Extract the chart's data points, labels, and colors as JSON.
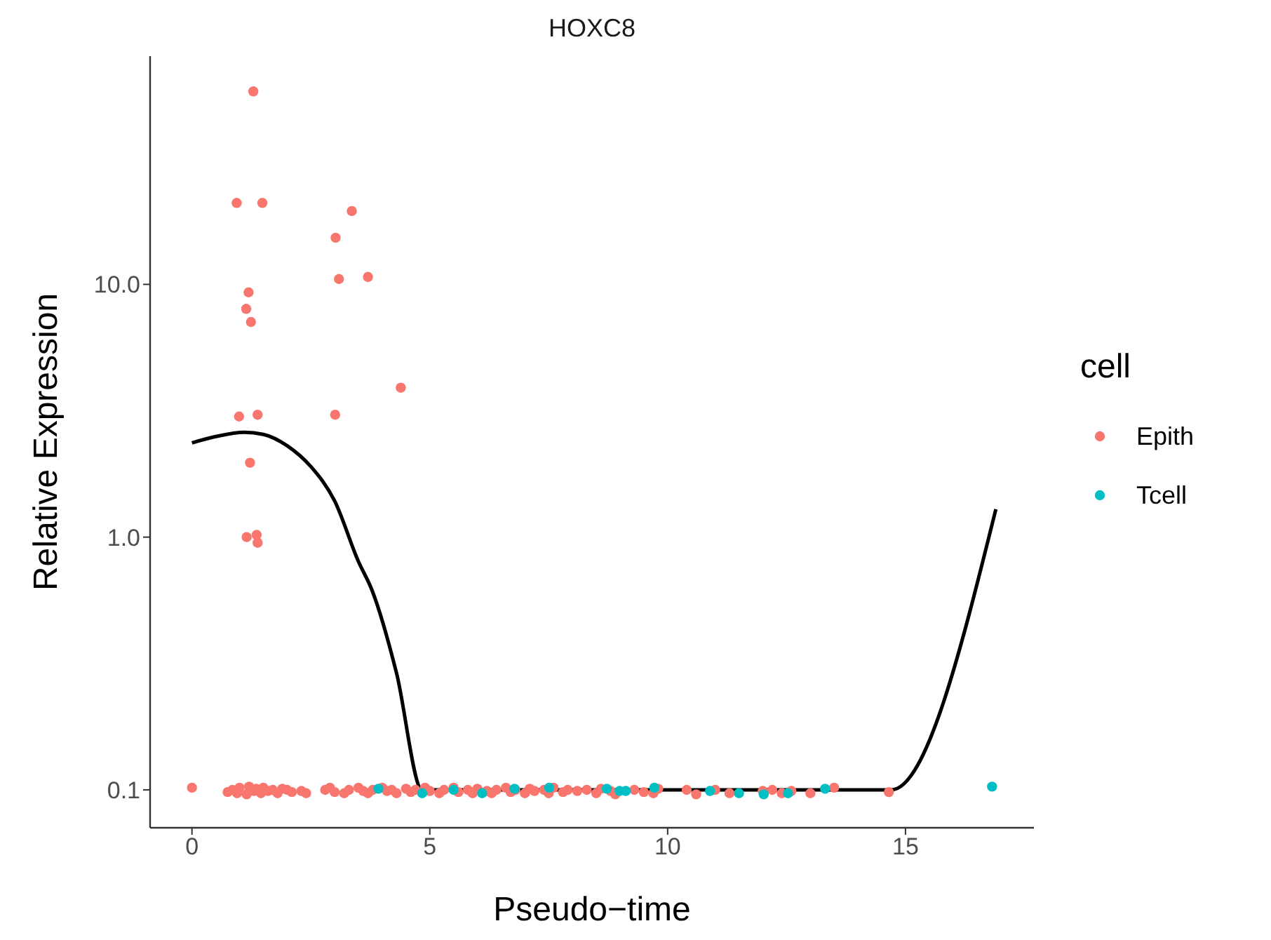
{
  "chart_data": {
    "type": "scatter",
    "title": "HOXC8",
    "xlabel": "Pseudo−time",
    "ylabel": "Relative Expression",
    "legend_title": "cell",
    "legend": "right",
    "grid": false,
    "log": "y",
    "marker": "circle",
    "xlim": [
      -0.88,
      17.7
    ],
    "xticks": [
      0,
      5,
      10,
      15
    ],
    "ylim": [
      0.0708,
      80
    ],
    "yticks": [
      {
        "value": 0.1,
        "label": "0.1"
      },
      {
        "value": 1,
        "label": "1.0"
      },
      {
        "value": 10,
        "label": "10.0"
      }
    ],
    "series": [
      {
        "name": "Epith",
        "color": "#f8766d",
        "x": [
          1.29,
          0.94,
          1.48,
          3.36,
          3.02,
          3.09,
          3.7,
          1.19,
          1.14,
          1.24,
          4.39,
          0.99,
          1.38,
          3.01,
          1.22,
          1.15,
          1.36,
          1.38,
          0.0,
          0.75,
          0.85,
          0.95,
          1.0,
          1.15,
          1.2,
          1.3,
          1.35,
          1.45,
          1.5,
          1.6,
          1.7,
          1.8,
          1.9,
          2.0,
          2.1,
          2.3,
          2.4,
          2.8,
          2.9,
          3.0,
          3.2,
          3.3,
          3.5,
          3.6,
          3.7,
          3.8,
          4.0,
          4.1,
          4.2,
          4.3,
          4.5,
          4.6,
          4.7,
          4.9,
          5.0,
          5.2,
          5.3,
          5.5,
          5.6,
          5.8,
          5.9,
          6.0,
          6.2,
          6.3,
          6.4,
          6.6,
          6.7,
          6.8,
          7.0,
          7.1,
          7.2,
          7.4,
          7.5,
          7.6,
          7.8,
          7.9,
          8.1,
          8.3,
          8.5,
          8.6,
          8.8,
          8.9,
          9.3,
          9.5,
          9.7,
          9.8,
          10.4,
          10.6,
          11.0,
          11.3,
          12.0,
          12.2,
          12.4,
          12.6,
          13.0,
          13.5,
          14.65
        ],
        "values": [
          58,
          21,
          21,
          19.5,
          15.3,
          10.5,
          10.7,
          9.3,
          8,
          7.1,
          3.9,
          3,
          3.05,
          3.05,
          1.97,
          1,
          1.02,
          0.95,
          0.102,
          0.098,
          0.1,
          0.097,
          0.102,
          0.096,
          0.103,
          0.099,
          0.101,
          0.097,
          0.102,
          0.099,
          0.1,
          0.097,
          0.101,
          0.1,
          0.098,
          0.099,
          0.097,
          0.1,
          0.102,
          0.098,
          0.097,
          0.1,
          0.102,
          0.099,
          0.097,
          0.1,
          0.102,
          0.099,
          0.1,
          0.097,
          0.101,
          0.098,
          0.1,
          0.102,
          0.099,
          0.097,
          0.1,
          0.102,
          0.098,
          0.1,
          0.097,
          0.101,
          0.099,
          0.097,
          0.1,
          0.102,
          0.098,
          0.1,
          0.097,
          0.101,
          0.099,
          0.1,
          0.097,
          0.102,
          0.098,
          0.1,
          0.099,
          0.1,
          0.097,
          0.101,
          0.099,
          0.096,
          0.1,
          0.098,
          0.097,
          0.101,
          0.1,
          0.096,
          0.1,
          0.097,
          0.099,
          0.1,
          0.097,
          0.099,
          0.097,
          0.102,
          0.098
        ]
      },
      {
        "name": "Tcell",
        "color": "#00bfc4",
        "x": [
          3.92,
          4.84,
          5.5,
          6.1,
          6.78,
          7.51,
          8.72,
          8.99,
          9.12,
          9.72,
          10.89,
          11.5,
          12.02,
          12.53,
          13.31,
          16.82
        ],
        "values": [
          0.101,
          0.097,
          0.1,
          0.097,
          0.101,
          0.102,
          0.101,
          0.099,
          0.099,
          0.102,
          0.099,
          0.097,
          0.096,
          0.097,
          0.101,
          0.103
        ]
      },
      {
        "type": "line",
        "color": "#000000",
        "marker": "none",
        "x": [
          0,
          0.5,
          1.1,
          1.5,
          2,
          2.5,
          3,
          3.5,
          3.78,
          4.3,
          4.84,
          14.7,
          16.9
        ],
        "values": [
          2.36,
          2.5,
          2.6,
          2.55,
          2.3,
          1.9,
          1.39,
          0.8,
          0.62,
          0.29,
          0.1,
          0.1,
          1.29
        ]
      }
    ]
  }
}
